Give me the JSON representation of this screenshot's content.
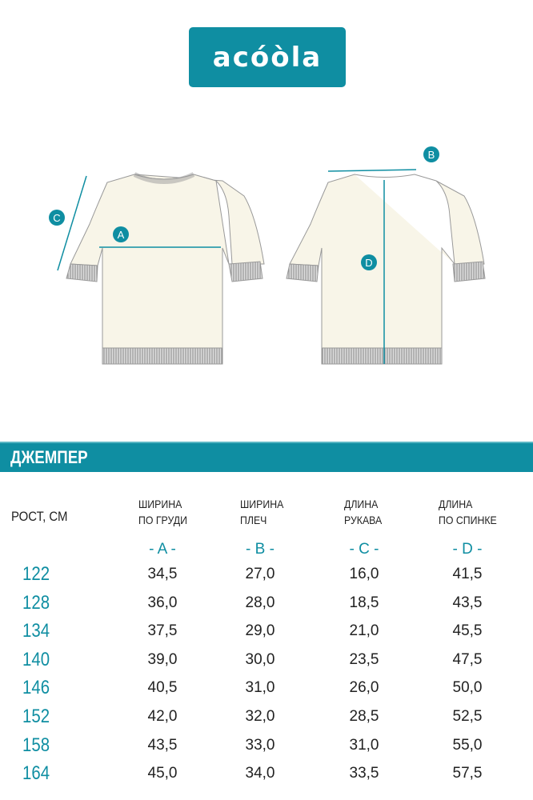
{
  "brand": {
    "logo_text": "acóòla",
    "color": "#0f8ea2"
  },
  "diagram": {
    "labels": [
      "A",
      "B",
      "C",
      "D"
    ]
  },
  "title": "ДЖЕМПЕР",
  "table": {
    "height_header": "РОСТ, СМ",
    "columns": [
      {
        "line1": "ШИРИНА",
        "line2": "ПО ГРУДИ",
        "letter": "- A -"
      },
      {
        "line1": "ШИРИНА",
        "line2": "ПЛЕЧ",
        "letter": "- B -"
      },
      {
        "line1": "ДЛИНА",
        "line2": "РУКАВА",
        "letter": "- C -"
      },
      {
        "line1": "ДЛИНА",
        "line2": "ПО СПИНКЕ",
        "letter": "- D -"
      }
    ],
    "rows": [
      {
        "h": "122",
        "v": [
          "34,5",
          "27,0",
          "16,0",
          "41,5"
        ]
      },
      {
        "h": "128",
        "v": [
          "36,0",
          "28,0",
          "18,5",
          "43,5"
        ]
      },
      {
        "h": "134",
        "v": [
          "37,5",
          "29,0",
          "21,0",
          "45,5"
        ]
      },
      {
        "h": "140",
        "v": [
          "39,0",
          "30,0",
          "23,5",
          "47,5"
        ]
      },
      {
        "h": "146",
        "v": [
          "40,5",
          "31,0",
          "26,0",
          "50,0"
        ]
      },
      {
        "h": "152",
        "v": [
          "42,0",
          "32,0",
          "28,5",
          "52,5"
        ]
      },
      {
        "h": "158",
        "v": [
          "43,5",
          "33,0",
          "31,0",
          "55,0"
        ]
      },
      {
        "h": "164",
        "v": [
          "45,0",
          "34,0",
          "33,5",
          "57,5"
        ]
      }
    ]
  }
}
